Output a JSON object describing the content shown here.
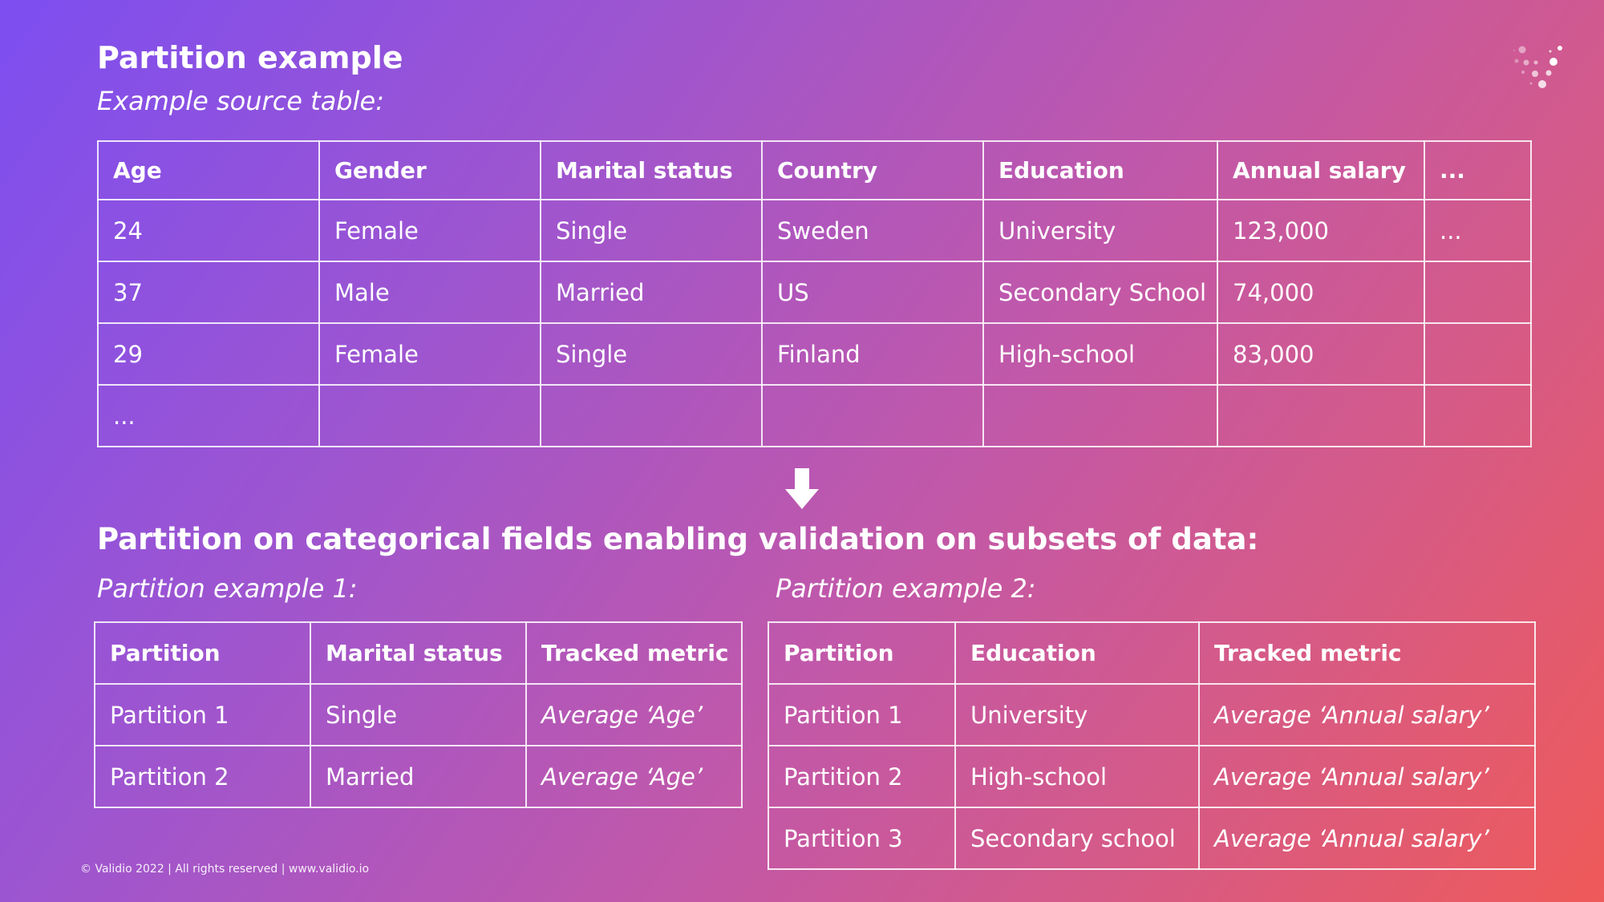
{
  "slide": {
    "title": "Partition example",
    "subtitle": "Example source table:",
    "section_title": "Partition on categorical fields enabling validation on subsets of data:",
    "footer": "© Validio 2022 | All rights reserved | www.validio.io"
  },
  "source_table": {
    "headers": [
      "Age",
      "Gender",
      "Marital status",
      "Country",
      "Education",
      "Annual salary",
      "..."
    ],
    "rows": [
      [
        "24",
        "Female",
        "Single",
        "Sweden",
        "University",
        "123,000",
        "..."
      ],
      [
        "37",
        "Male",
        "Married",
        "US",
        "Secondary School",
        "74,000",
        ""
      ],
      [
        "29",
        "Female",
        "Single",
        "Finland",
        "High-school",
        "83,000",
        ""
      ],
      [
        "...",
        "",
        "",
        "",
        "",
        "",
        ""
      ]
    ]
  },
  "partition1": {
    "caption": "Partition example 1:",
    "headers": [
      "Partition",
      "Marital status",
      "Tracked metric"
    ],
    "rows": [
      [
        "Partition 1",
        "Single",
        "Average ‘Age’"
      ],
      [
        "Partition 2",
        "Married",
        "Average ‘Age’"
      ]
    ]
  },
  "partition2": {
    "caption": "Partition example 2:",
    "headers": [
      "Partition",
      "Education",
      "Tracked metric"
    ],
    "rows": [
      [
        "Partition 1",
        "University",
        "Average ‘Annual salary’"
      ],
      [
        "Partition 2",
        "High-school",
        "Average ‘Annual salary’"
      ],
      [
        "Partition 3",
        "Secondary school",
        "Average ‘Annual salary’"
      ]
    ]
  },
  "icons": {
    "arrow": "down-arrow-icon",
    "logo": "validio-logo-icon"
  },
  "colors": {
    "gradient_start": "#7d4ef0",
    "gradient_end": "#ef5a59",
    "text": "#ffffff"
  }
}
